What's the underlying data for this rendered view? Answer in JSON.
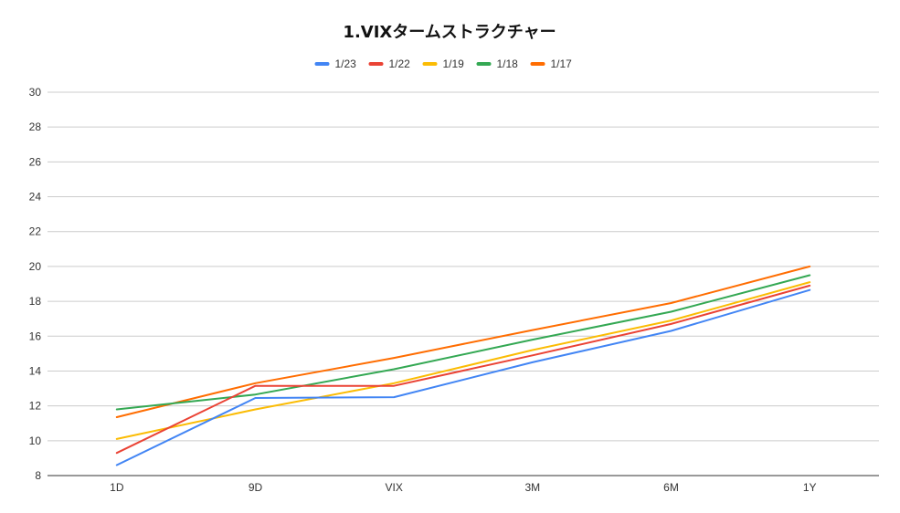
{
  "chart_data": {
    "type": "line",
    "title": "1.VIXタームストラクチャー",
    "xlabel": "",
    "ylabel": "",
    "categories": [
      "1D",
      "9D",
      "VIX",
      "3M",
      "6M",
      "1Y"
    ],
    "ylim": [
      8,
      30
    ],
    "yticks": [
      "8",
      "10",
      "12",
      "14",
      "16",
      "18",
      "20",
      "22",
      "24",
      "26",
      "28",
      "30"
    ],
    "grid": true,
    "legend_position": "top",
    "series": [
      {
        "name": "1/23",
        "color": "#4285F4",
        "values": [
          8.6,
          12.45,
          12.5,
          14.5,
          16.3,
          18.65
        ]
      },
      {
        "name": "1/22",
        "color": "#EA4335",
        "values": [
          9.3,
          13.15,
          13.15,
          14.9,
          16.7,
          18.9
        ]
      },
      {
        "name": "1/19",
        "color": "#FBBC04",
        "values": [
          10.1,
          11.8,
          13.3,
          15.2,
          16.9,
          19.1
        ]
      },
      {
        "name": "1/18",
        "color": "#34A853",
        "values": [
          11.8,
          12.65,
          14.1,
          15.8,
          17.4,
          19.5
        ]
      },
      {
        "name": "1/17",
        "color": "#FF6D01",
        "values": [
          11.35,
          13.3,
          14.75,
          16.35,
          17.9,
          20.0
        ]
      }
    ]
  }
}
